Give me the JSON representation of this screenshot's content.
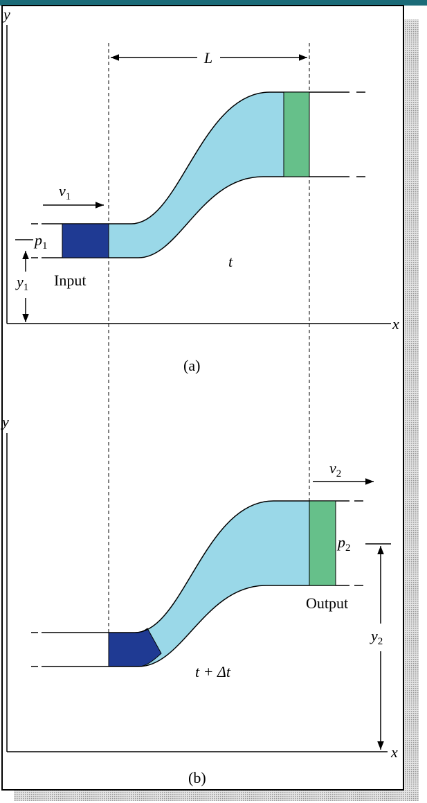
{
  "panel_a": {
    "y_axis": "y",
    "x_axis": "x",
    "length": "L",
    "velocity": {
      "symbol": "v",
      "sub": "1"
    },
    "pressure": {
      "symbol": "p",
      "sub": "1"
    },
    "height": {
      "symbol": "y",
      "sub": "1"
    },
    "region": "Input",
    "time": "t",
    "caption": "(a)"
  },
  "panel_b": {
    "y_axis": "y",
    "x_axis": "x",
    "velocity": {
      "symbol": "v",
      "sub": "2"
    },
    "pressure": {
      "symbol": "p",
      "sub": "2"
    },
    "height": {
      "symbol": "y",
      "sub": "2"
    },
    "region": "Output",
    "time": "t + Δt",
    "caption": "(b)"
  }
}
